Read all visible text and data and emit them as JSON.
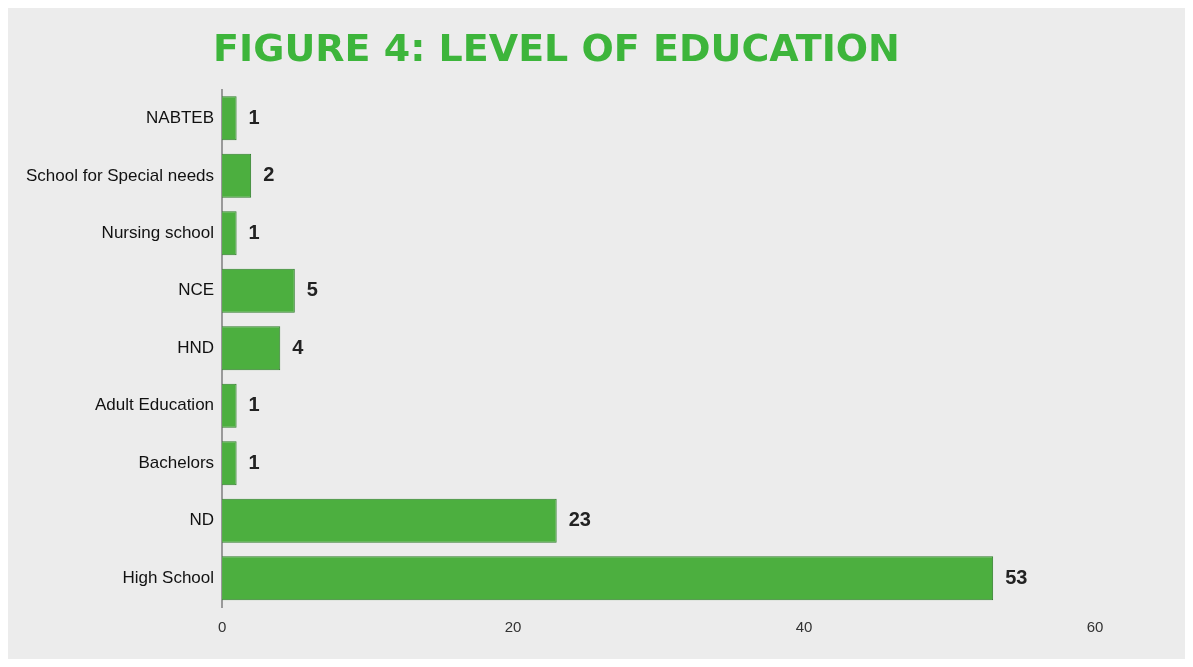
{
  "chart_data": {
    "type": "bar",
    "orientation": "horizontal",
    "title": "FIGURE 4: LEVEL OF EDUCATION",
    "categories": [
      "NABTEB",
      "School for Special needs",
      "Nursing school",
      "NCE",
      "HND",
      "Adult Education",
      "Bachelors",
      "ND",
      "High School"
    ],
    "values": [
      1,
      2,
      1,
      5,
      4,
      1,
      1,
      23,
      53
    ],
    "color": "#4caf3f",
    "xlim": [
      0,
      60
    ],
    "xticks": [
      0,
      20,
      40,
      60
    ],
    "grid": false,
    "data_labels": true,
    "legend": false
  }
}
